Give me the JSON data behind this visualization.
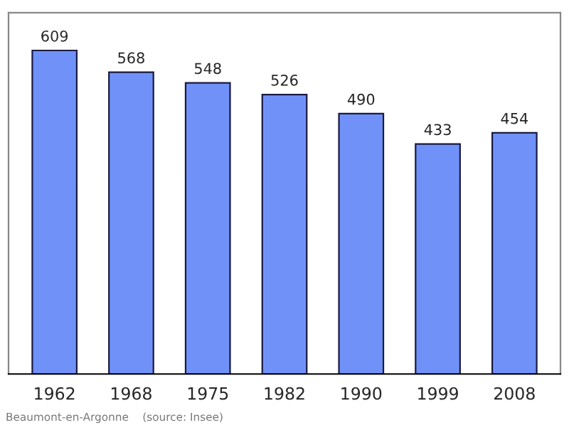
{
  "chart_data": {
    "type": "bar",
    "categories": [
      "1962",
      "1968",
      "1975",
      "1982",
      "1990",
      "1999",
      "2008"
    ],
    "values": [
      609,
      568,
      548,
      526,
      490,
      433,
      454
    ],
    "color": "#7092f8",
    "data_labels": true,
    "ylim": [
      0,
      680
    ],
    "tick_labels": "x",
    "grid": false,
    "annotations": [
      "Beaumont-en-Argonne    (source: Insee)"
    ]
  }
}
